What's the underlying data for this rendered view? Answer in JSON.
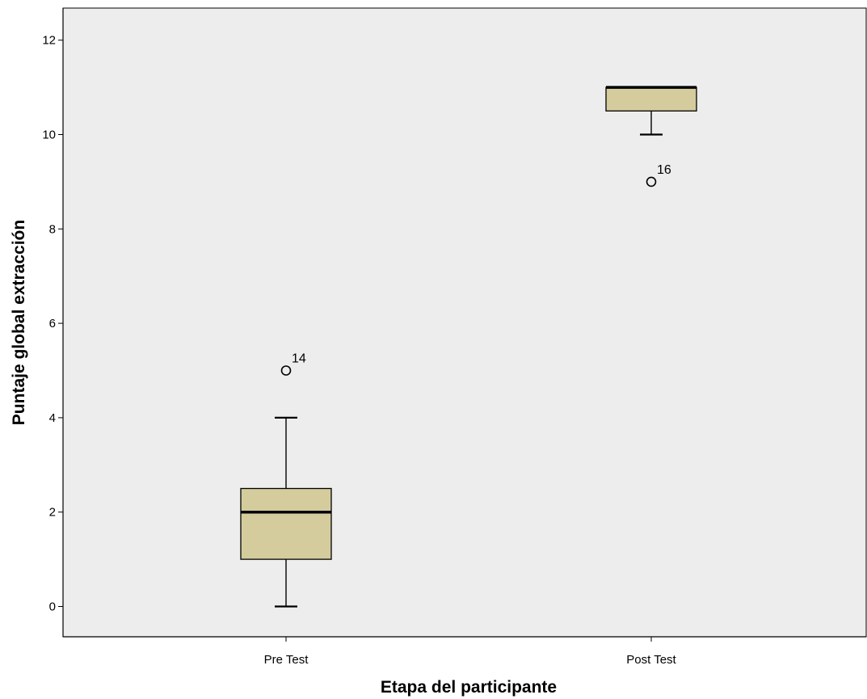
{
  "chart_data": {
    "type": "boxplot",
    "xlabel": "Etapa del participante",
    "ylabel": "Puntaje global extracción",
    "ylim": [
      -0.7,
      12.7
    ],
    "yticks": [
      0,
      2,
      4,
      6,
      8,
      10,
      12
    ],
    "grid": false,
    "legend": "none",
    "colors": {
      "background": "#ededed",
      "box_fill": "#d4cc9c",
      "stroke": "#000000"
    },
    "categories": [
      "Pre Test",
      "Post Test"
    ],
    "boxes": [
      {
        "category": "Pre Test",
        "min": 0,
        "q1": 1,
        "median": 2,
        "q3": 2.5,
        "max": 4,
        "outliers": [
          {
            "value": 5,
            "label": "14"
          }
        ]
      },
      {
        "category": "Post Test",
        "min": 10,
        "q1": 10.5,
        "median": 11,
        "q3": 11,
        "max": 11,
        "outliers": [
          {
            "value": 9,
            "label": "16"
          }
        ]
      }
    ]
  }
}
